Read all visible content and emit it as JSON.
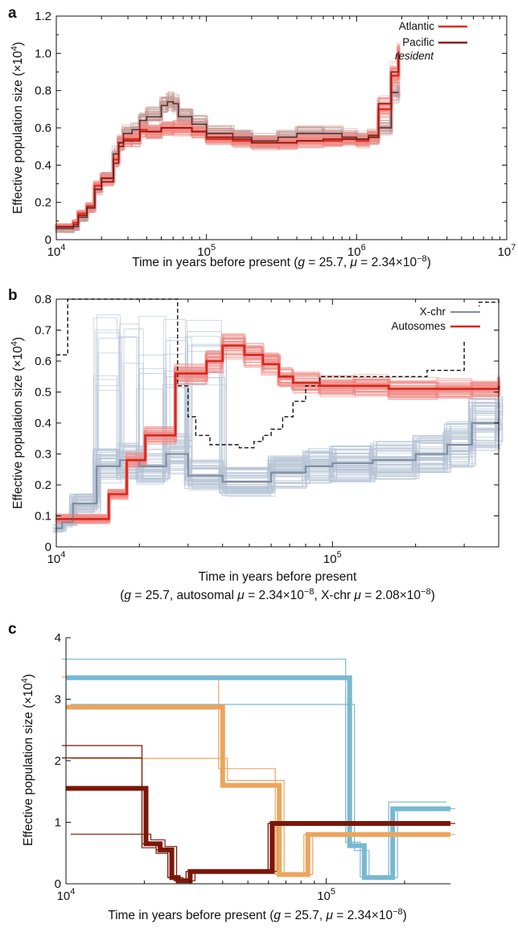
{
  "colors": {
    "atlantic": "#e8271a",
    "atlantic_boot": "#ef8a85",
    "pacific": "#8b1a0e",
    "resident_boot": "#c49a98",
    "resident_line": "#4a2a2a",
    "xchr": "#7f8fa0",
    "xchr_boot": "#b7c4d6",
    "autosomes": "#d8261c",
    "autosomes_boot": "#ef8a85",
    "dashed": "#111111",
    "c_blue": "#78b8d0",
    "c_orange": "#eba55c",
    "c_dark": "#7a1708"
  },
  "chart_data": [
    {
      "panel": "a",
      "type": "line",
      "xscale": "log",
      "xlim": [
        10000,
        10000000
      ],
      "ylim": [
        0,
        1.2
      ],
      "xticks": [
        "10^4",
        "10^5",
        "10^6",
        "10^7"
      ],
      "yticks": [
        "0",
        "0.2",
        "0.4",
        "0.6",
        "0.8",
        "1.0",
        "1.2"
      ],
      "ylabel": "Effective population size (×10^4)",
      "xlabel": "Time in years before present (g = 25.7, μ = 2.34×10^−8)",
      "legend": {
        "placement": "top-right",
        "entries": [
          "Atlantic",
          "Pacific",
          "resident"
        ]
      },
      "series": [
        {
          "name": "Atlantic",
          "x": [
            10000,
            11000,
            13000,
            14000,
            16000,
            18000,
            20000,
            24000,
            26000,
            28000,
            32000,
            36000,
            40000,
            50000,
            60000,
            80000,
            100000,
            150000,
            200000,
            300000,
            400000,
            600000,
            800000,
            1000000,
            1200000,
            1400000,
            1700000,
            1900000
          ],
          "y": [
            0.07,
            0.07,
            0.09,
            0.14,
            0.18,
            0.29,
            0.33,
            0.43,
            0.52,
            0.54,
            0.54,
            0.59,
            0.58,
            0.6,
            0.6,
            0.58,
            0.54,
            0.53,
            0.52,
            0.52,
            0.53,
            0.53,
            0.54,
            0.53,
            0.55,
            0.7,
            0.88,
            1.0
          ]
        },
        {
          "name": "Pacific",
          "x": [
            10000,
            11000,
            13000,
            14000,
            16000,
            18000,
            20000,
            24000,
            26000,
            28000,
            32000,
            36000,
            40000,
            50000,
            60000,
            80000,
            100000,
            150000,
            200000,
            300000,
            400000,
            600000,
            800000,
            1000000,
            1200000,
            1400000,
            1700000,
            1900000
          ],
          "y": [
            0.07,
            0.07,
            0.08,
            0.13,
            0.17,
            0.27,
            0.31,
            0.41,
            0.5,
            0.53,
            0.53,
            0.58,
            0.58,
            0.6,
            0.6,
            0.58,
            0.55,
            0.54,
            0.52,
            0.52,
            0.53,
            0.54,
            0.54,
            0.54,
            0.56,
            0.73,
            0.9,
            1.01
          ]
        },
        {
          "name": "resident",
          "x": [
            10000,
            11000,
            13000,
            14000,
            16000,
            18000,
            20000,
            24000,
            26000,
            28000,
            32000,
            36000,
            40000,
            50000,
            55000,
            60000,
            65000,
            80000,
            100000,
            150000,
            200000,
            300000,
            400000,
            600000,
            800000,
            1000000,
            1200000,
            1400000,
            1700000,
            1900000
          ],
          "y": [
            0.06,
            0.06,
            0.07,
            0.12,
            0.17,
            0.27,
            0.33,
            0.46,
            0.52,
            0.57,
            0.59,
            0.64,
            0.66,
            0.72,
            0.74,
            0.73,
            0.66,
            0.62,
            0.57,
            0.55,
            0.53,
            0.55,
            0.57,
            0.57,
            0.55,
            0.54,
            0.55,
            0.6,
            0.79,
            0.79
          ]
        }
      ]
    },
    {
      "panel": "b",
      "type": "line",
      "xscale": "log",
      "xlim": [
        10000,
        400000
      ],
      "ylim": [
        0,
        0.8
      ],
      "xticks": [
        "10^4",
        "10^5"
      ],
      "yticks": [
        "0",
        "0.1",
        "0.2",
        "0.3",
        "0.4",
        "0.5",
        "0.6",
        "0.7",
        "0.8"
      ],
      "ylabel": "Effective population size (×10^4)",
      "xlabel": "Time in years before present",
      "xlabel2": "(g = 25.7, autosomal μ = 2.34×10^−8, X-chr μ = 2.08×10^−8)",
      "legend": {
        "placement": "top-right",
        "entries": [
          "X-chr",
          "Autosomes"
        ]
      },
      "series": [
        {
          "name": "X-chr",
          "x": [
            10000,
            10500,
            11500,
            14000,
            17000,
            20000,
            25000,
            30000,
            40000,
            60000,
            80000,
            100000,
            140000,
            200000,
            260000,
            320000,
            400000
          ],
          "y": [
            0.06,
            0.08,
            0.14,
            0.26,
            0.28,
            0.26,
            0.3,
            0.23,
            0.21,
            0.24,
            0.26,
            0.27,
            0.28,
            0.3,
            0.33,
            0.4,
            0.4
          ]
        },
        {
          "name": "Autosomes",
          "x": [
            10000,
            12000,
            15500,
            18000,
            21000,
            27000,
            35000,
            40000,
            48000,
            56000,
            64000,
            72000,
            90000,
            120000,
            160000,
            240000,
            320000,
            400000
          ],
          "y": [
            0.09,
            0.09,
            0.17,
            0.28,
            0.36,
            0.56,
            0.6,
            0.65,
            0.62,
            0.59,
            0.55,
            0.53,
            0.52,
            0.52,
            0.51,
            0.51,
            0.51,
            0.52
          ]
        },
        {
          "name": "",
          "style": "dashed",
          "x": [
            10000,
            10300,
            11000,
            26000,
            27500,
            30000,
            32000,
            36000,
            46000,
            52000,
            56000,
            60000,
            66000,
            72000,
            80000,
            90000,
            110000,
            150000,
            220000,
            300000,
            340000,
            400000
          ],
          "y": [
            0.62,
            0.62,
            0.8,
            0.8,
            0.52,
            0.42,
            0.36,
            0.33,
            0.32,
            0.34,
            0.36,
            0.38,
            0.42,
            0.47,
            0.52,
            0.55,
            0.55,
            0.55,
            0.57,
            0.74,
            0.79,
            0.8
          ]
        }
      ]
    },
    {
      "panel": "c",
      "type": "line",
      "xscale": "log",
      "xlim": [
        10000,
        300000
      ],
      "ylim": [
        0,
        4
      ],
      "xticks": [
        "10^4",
        "10^5"
      ],
      "yticks": [
        "0",
        "1",
        "2",
        "3",
        "4"
      ],
      "ylabel": "Effective population size (×10^4)",
      "xlabel": "Time in years before present (g = 25.7, μ = 2.34×10^−8)",
      "series": [
        {
          "x": [
            10000,
            118000,
            123000,
            140000,
            150000,
            180000,
            300000
          ],
          "y": [
            3.35,
            3.35,
            0.62,
            0.1,
            0.1,
            1.22,
            1.22
          ]
        },
        {
          "x": [
            10000,
            40000,
            40000,
            62000,
            66000,
            72000,
            85000,
            300000
          ],
          "y": [
            2.87,
            2.87,
            1.6,
            1.6,
            0.15,
            0.15,
            0.8,
            0.8
          ]
        },
        {
          "x": [
            10000,
            20000,
            20300,
            23000,
            25500,
            27000,
            30000,
            60000,
            62000,
            300000
          ],
          "y": [
            1.55,
            1.55,
            0.65,
            0.55,
            0.1,
            0.05,
            0.2,
            0.2,
            0.98,
            0.98
          ]
        }
      ]
    }
  ]
}
